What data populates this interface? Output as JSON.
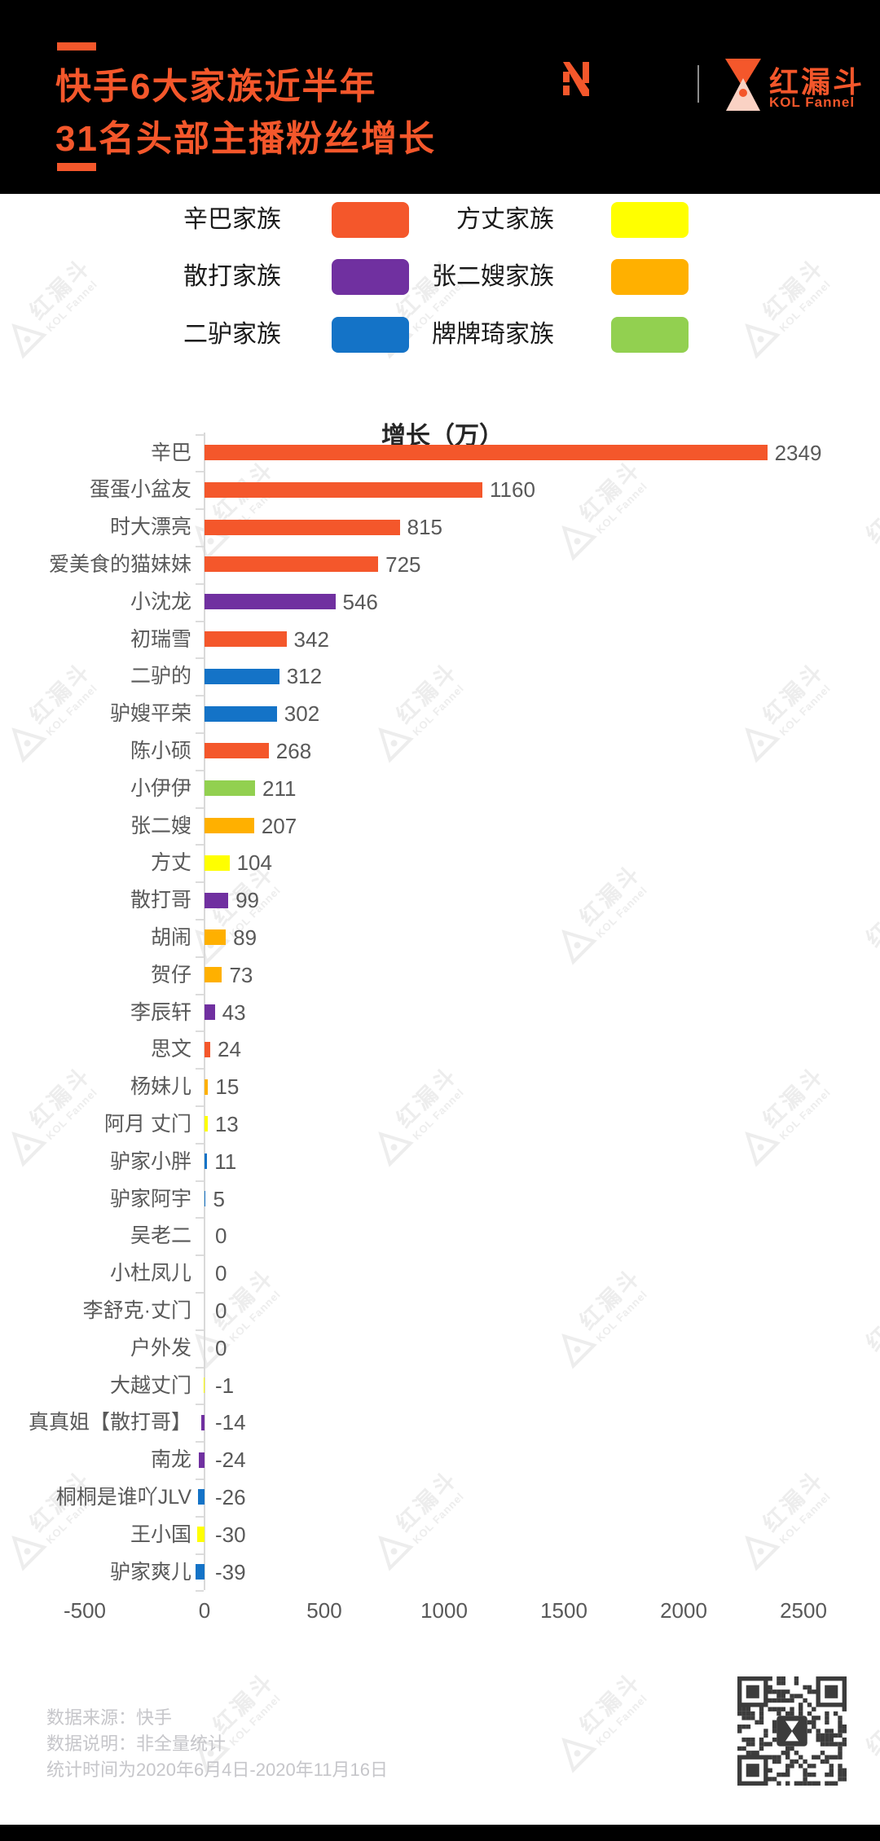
{
  "header": {
    "title_line1": "快手6大家族近半年",
    "title_line2": "31名头部主播粉丝增长",
    "brand_name": "红漏斗",
    "brand_sub": "KOL Fannel"
  },
  "colors": {
    "accent_orange": "#F4572B",
    "header_bg": "#000000",
    "axis_gray": "#d9d9d9",
    "text_gray": "#595959",
    "footer_gray": "#c6c6ca",
    "watermark_gray": "#ededed",
    "qr_dark": "#3c3c3c"
  },
  "legend": {
    "items": [
      {
        "label": "辛巴家族",
        "color": "#F4572B"
      },
      {
        "label": "方丈家族",
        "color": "#FFFF00"
      },
      {
        "label": "散打家族",
        "color": "#7030A0"
      },
      {
        "label": "张二嫂家族",
        "color": "#FFB000"
      },
      {
        "label": "二驴家族",
        "color": "#1473C7"
      },
      {
        "label": "牌牌琦家族",
        "color": "#92D050"
      }
    ]
  },
  "chart_data": {
    "type": "bar",
    "orientation": "horizontal",
    "title": "增长（万）",
    "xlim": [
      -500,
      2500
    ],
    "x_ticks": [
      -500,
      0,
      500,
      1000,
      1500,
      2000,
      2500
    ],
    "grid": false,
    "legend_position": "top",
    "family_colors": {
      "辛巴家族": "#F4572B",
      "方丈家族": "#FFFF00",
      "散打家族": "#7030A0",
      "张二嫂家族": "#FFB000",
      "二驴家族": "#1473C7",
      "牌牌琦家族": "#92D050"
    },
    "bars": [
      {
        "name": "辛巴",
        "value": 2349,
        "family": "辛巴家族"
      },
      {
        "name": "蛋蛋小盆友",
        "value": 1160,
        "family": "辛巴家族"
      },
      {
        "name": "时大漂亮",
        "value": 815,
        "family": "辛巴家族"
      },
      {
        "name": "爱美食的猫妹妹",
        "value": 725,
        "family": "辛巴家族"
      },
      {
        "name": "小沈龙",
        "value": 546,
        "family": "散打家族"
      },
      {
        "name": "初瑞雪",
        "value": 342,
        "family": "辛巴家族"
      },
      {
        "name": "二驴的",
        "value": 312,
        "family": "二驴家族"
      },
      {
        "name": "驴嫂平荣",
        "value": 302,
        "family": "二驴家族"
      },
      {
        "name": "陈小硕",
        "value": 268,
        "family": "辛巴家族"
      },
      {
        "name": "小伊伊",
        "value": 211,
        "family": "牌牌琦家族"
      },
      {
        "name": "张二嫂",
        "value": 207,
        "family": "张二嫂家族"
      },
      {
        "name": "方丈",
        "value": 104,
        "family": "方丈家族"
      },
      {
        "name": "散打哥",
        "value": 99,
        "family": "散打家族"
      },
      {
        "name": "胡闹",
        "value": 89,
        "family": "张二嫂家族"
      },
      {
        "name": "贺仔",
        "value": 73,
        "family": "张二嫂家族"
      },
      {
        "name": "李辰轩",
        "value": 43,
        "family": "散打家族"
      },
      {
        "name": "思文",
        "value": 24,
        "family": "辛巴家族"
      },
      {
        "name": "杨妹儿",
        "value": 15,
        "family": "张二嫂家族"
      },
      {
        "name": "阿月 丈门",
        "value": 13,
        "family": "方丈家族"
      },
      {
        "name": "驴家小胖",
        "value": 11,
        "family": "二驴家族"
      },
      {
        "name": "驴家阿宇",
        "value": 5,
        "family": "二驴家族"
      },
      {
        "name": "吴老二",
        "value": 0,
        "family": ""
      },
      {
        "name": "小杜凤儿",
        "value": 0,
        "family": ""
      },
      {
        "name": "李舒克·丈门",
        "value": 0,
        "family": "方丈家族"
      },
      {
        "name": "户外发",
        "value": 0,
        "family": ""
      },
      {
        "name": "大越丈门",
        "value": -1,
        "family": "方丈家族"
      },
      {
        "name": "真真姐【散打哥】",
        "value": -14,
        "family": "散打家族"
      },
      {
        "name": "南龙",
        "value": -24,
        "family": "散打家族"
      },
      {
        "name": "桐桐是谁吖JLV",
        "value": -26,
        "family": "二驴家族"
      },
      {
        "name": "王小国",
        "value": -30,
        "family": "方丈家族"
      },
      {
        "name": "驴家爽儿",
        "value": -39,
        "family": "二驴家族"
      }
    ]
  },
  "footer": {
    "lines": [
      "数据来源：快手",
      "数据说明：非全量统计",
      "统计时间为2020年6月4日-2020年11月16日"
    ]
  },
  "watermark": {
    "text": "红漏斗",
    "sub": "KOL Fannel"
  }
}
